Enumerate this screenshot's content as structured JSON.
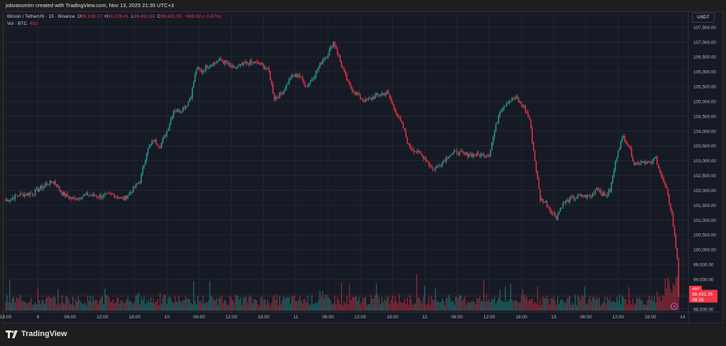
{
  "header": {
    "attribution": "jobvassmirn created with TradingView.com, Nov 13, 2025 21:35 UTC+3"
  },
  "legend": {
    "symbol": "Bitcoin / TetherUS · 15 · Binance",
    "o_label": "O",
    "o_value": "99,100.17",
    "h_label": "H",
    "h_value": "99,126.41",
    "l_label": "L",
    "l_value": "98,412.66",
    "c_label": "C",
    "c_value": "98,431.35",
    "change": "−668.82 (−0.67%)",
    "vol_label": "Vol · BTC",
    "vol_value": "492"
  },
  "currency_button": "USDT",
  "footer": {
    "brand": "TradingView"
  },
  "colors": {
    "up": "#26a69a",
    "down": "#f23645",
    "grid": "#232733",
    "axis_text": "#b2b5be",
    "bg": "#161a25"
  },
  "chart_data": {
    "type": "candlestick",
    "ylim": [
      97900,
      107700
    ],
    "y_ticks": [
      98000,
      98500,
      99000,
      99500,
      100000,
      100500,
      101000,
      101500,
      102000,
      102500,
      103000,
      103500,
      104000,
      104500,
      105000,
      105500,
      106000,
      106500,
      107000,
      107500
    ],
    "y_tick_labels": [
      "98,000.00",
      "98,500.00",
      "99,000.00",
      "99,500.00",
      "100,000.00",
      "100,500.00",
      "101,000.00",
      "101,500.00",
      "102,000.00",
      "102,500.00",
      "103,000.00",
      "103,500.00",
      "104,000.00",
      "104,500.00",
      "105,000.00",
      "105,500.00",
      "106,000.00",
      "106,500.00",
      "107,000.00",
      "107,500.00"
    ],
    "x_tick_labels": [
      "18:00",
      "9",
      "06:00",
      "12:00",
      "18:00",
      "10",
      "06:00",
      "12:00",
      "18:00",
      "11",
      "06:00",
      "12:00",
      "18:00",
      "12",
      "06:00",
      "12:00",
      "18:00",
      "13",
      "06:00",
      "12:00",
      "18:00",
      "14"
    ],
    "x_ticks_index": [
      0,
      24,
      48,
      72,
      96,
      120,
      144,
      168,
      192,
      216,
      240,
      264,
      288,
      312,
      336,
      360,
      384,
      408,
      432,
      456,
      480,
      504
    ],
    "candle_count": 502,
    "close_path": [
      [
        0,
        101650
      ],
      [
        10,
        101850
      ],
      [
        20,
        101900
      ],
      [
        30,
        102200
      ],
      [
        36,
        102300
      ],
      [
        42,
        101900
      ],
      [
        50,
        101700
      ],
      [
        60,
        101850
      ],
      [
        70,
        101800
      ],
      [
        80,
        101850
      ],
      [
        88,
        101700
      ],
      [
        95,
        102050
      ],
      [
        100,
        102300
      ],
      [
        105,
        103300
      ],
      [
        110,
        103700
      ],
      [
        115,
        103500
      ],
      [
        120,
        104000
      ],
      [
        125,
        104700
      ],
      [
        130,
        104700
      ],
      [
        135,
        104900
      ],
      [
        138,
        105200
      ],
      [
        142,
        106100
      ],
      [
        146,
        106000
      ],
      [
        150,
        106200
      ],
      [
        160,
        106400
      ],
      [
        170,
        106100
      ],
      [
        180,
        106300
      ],
      [
        186,
        106300
      ],
      [
        192,
        106200
      ],
      [
        196,
        106000
      ],
      [
        200,
        105100
      ],
      [
        206,
        105300
      ],
      [
        212,
        105800
      ],
      [
        218,
        105900
      ],
      [
        224,
        105500
      ],
      [
        230,
        105900
      ],
      [
        236,
        106400
      ],
      [
        240,
        106600
      ],
      [
        244,
        107000
      ],
      [
        246,
        106800
      ],
      [
        250,
        106200
      ],
      [
        256,
        105500
      ],
      [
        262,
        105200
      ],
      [
        268,
        105000
      ],
      [
        276,
        105200
      ],
      [
        284,
        105300
      ],
      [
        290,
        104700
      ],
      [
        296,
        104100
      ],
      [
        300,
        103500
      ],
      [
        306,
        103300
      ],
      [
        312,
        103100
      ],
      [
        318,
        102700
      ],
      [
        324,
        102900
      ],
      [
        330,
        103200
      ],
      [
        336,
        103300
      ],
      [
        342,
        103200
      ],
      [
        350,
        103200
      ],
      [
        360,
        103200
      ],
      [
        364,
        104000
      ],
      [
        368,
        104700
      ],
      [
        374,
        105000
      ],
      [
        380,
        105100
      ],
      [
        386,
        104800
      ],
      [
        390,
        104400
      ],
      [
        394,
        103000
      ],
      [
        398,
        101700
      ],
      [
        402,
        101600
      ],
      [
        406,
        101300
      ],
      [
        410,
        101100
      ],
      [
        414,
        101500
      ],
      [
        420,
        101700
      ],
      [
        428,
        101800
      ],
      [
        436,
        101800
      ],
      [
        440,
        102100
      ],
      [
        446,
        101800
      ],
      [
        450,
        102000
      ],
      [
        456,
        103400
      ],
      [
        460,
        103800
      ],
      [
        464,
        103500
      ],
      [
        468,
        102900
      ],
      [
        474,
        103000
      ],
      [
        480,
        102900
      ],
      [
        484,
        103100
      ],
      [
        488,
        102500
      ],
      [
        492,
        102000
      ],
      [
        496,
        101200
      ],
      [
        500,
        99700
      ],
      [
        501,
        98431
      ]
    ],
    "last_price": "98,431.35",
    "countdown": "09:35",
    "last_volume": "492"
  }
}
